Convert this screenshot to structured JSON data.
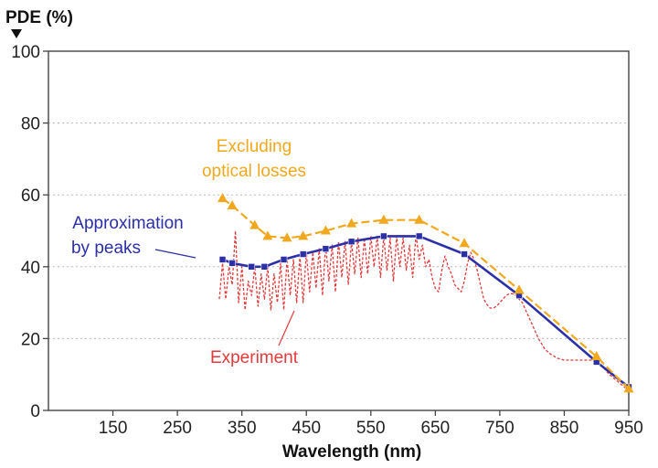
{
  "chart_data": {
    "type": "line",
    "title": "",
    "xlabel": "Wavelength (nm)",
    "ylabel": "PDE (%)",
    "xlim": [
      50,
      950
    ],
    "ylim": [
      0,
      100
    ],
    "xticks": [
      150,
      250,
      350,
      450,
      550,
      650,
      750,
      850,
      950
    ],
    "yticks": [
      0,
      20,
      40,
      60,
      80,
      100
    ],
    "grid": "horizontal dotted",
    "colors": {
      "excluding": "#f0a81e",
      "approx": "#2b2fa8",
      "experiment": "#e23a3a"
    },
    "series": [
      {
        "name": "Excluding optical losses",
        "style": "dashed line with triangle markers",
        "x": [
          320,
          335,
          370,
          390,
          420,
          445,
          480,
          520,
          570,
          625,
          695,
          780,
          900,
          950
        ],
        "y": [
          59,
          57,
          51.5,
          48.5,
          48,
          48.5,
          50,
          52,
          53,
          53,
          46.5,
          33.5,
          15,
          6
        ]
      },
      {
        "name": "Approximation by peaks",
        "style": "solid line with square markers",
        "x": [
          320,
          335,
          365,
          385,
          415,
          445,
          480,
          520,
          570,
          625,
          695,
          780,
          900,
          950
        ],
        "y": [
          42,
          41,
          40,
          40,
          42,
          43.5,
          45,
          47,
          48.5,
          48.5,
          43.5,
          32,
          13.5,
          6.5
        ]
      },
      {
        "name": "Experiment",
        "style": "thin dashed oscillating line",
        "x": [
          315,
          320,
          325,
          330,
          335,
          340,
          345,
          350,
          355,
          360,
          365,
          370,
          375,
          380,
          385,
          390,
          395,
          400,
          405,
          410,
          415,
          420,
          425,
          430,
          435,
          440,
          445,
          450,
          455,
          460,
          465,
          470,
          475,
          480,
          485,
          490,
          495,
          500,
          505,
          510,
          515,
          520,
          525,
          530,
          535,
          540,
          545,
          550,
          555,
          560,
          565,
          570,
          575,
          580,
          585,
          590,
          595,
          600,
          605,
          610,
          615,
          620,
          625,
          630,
          635,
          640,
          645,
          650,
          655,
          660,
          665,
          670,
          675,
          680,
          685,
          690,
          695,
          700,
          705,
          710,
          715,
          720,
          725,
          730,
          735,
          740,
          745,
          750,
          755,
          760,
          765,
          770,
          775,
          780,
          785,
          790,
          800,
          810,
          820,
          830,
          840,
          850,
          860,
          870,
          880,
          890,
          900,
          910,
          920,
          930,
          940,
          950
        ],
        "y": [
          31,
          41,
          31,
          40,
          35,
          50,
          30,
          40,
          28,
          36,
          32,
          40,
          29,
          38,
          31,
          40,
          28,
          38,
          30,
          41,
          28,
          42,
          32,
          42,
          30,
          43,
          30,
          44,
          33,
          44,
          34,
          45,
          32,
          46,
          36,
          46,
          33,
          47,
          37,
          47,
          35,
          47,
          38,
          48,
          37,
          48,
          38,
          48.5,
          40,
          48.5,
          37,
          48.5,
          39,
          48,
          36,
          48.5,
          40,
          48,
          39,
          46,
          37,
          49,
          42,
          46,
          40,
          42,
          37,
          34,
          33,
          39,
          43,
          40,
          38,
          35,
          34,
          33,
          36,
          41,
          44,
          42,
          39,
          35,
          31,
          29.5,
          28.5,
          28.5,
          29,
          30,
          31,
          32,
          32.5,
          32.5,
          32,
          31,
          30,
          28,
          24,
          20,
          17,
          15.5,
          14.5,
          14,
          14,
          14,
          14,
          14,
          14,
          12,
          10,
          8.5,
          7,
          5.5
        ]
      }
    ],
    "annotations": [
      {
        "line1": "Excluding",
        "line2": "optical losses",
        "color": "#f0a81e"
      },
      {
        "line1": "Approximation",
        "line2": "by peaks",
        "color": "#2b2fa8"
      },
      {
        "line1": "Experiment",
        "color": "#e23a3a"
      }
    ]
  }
}
